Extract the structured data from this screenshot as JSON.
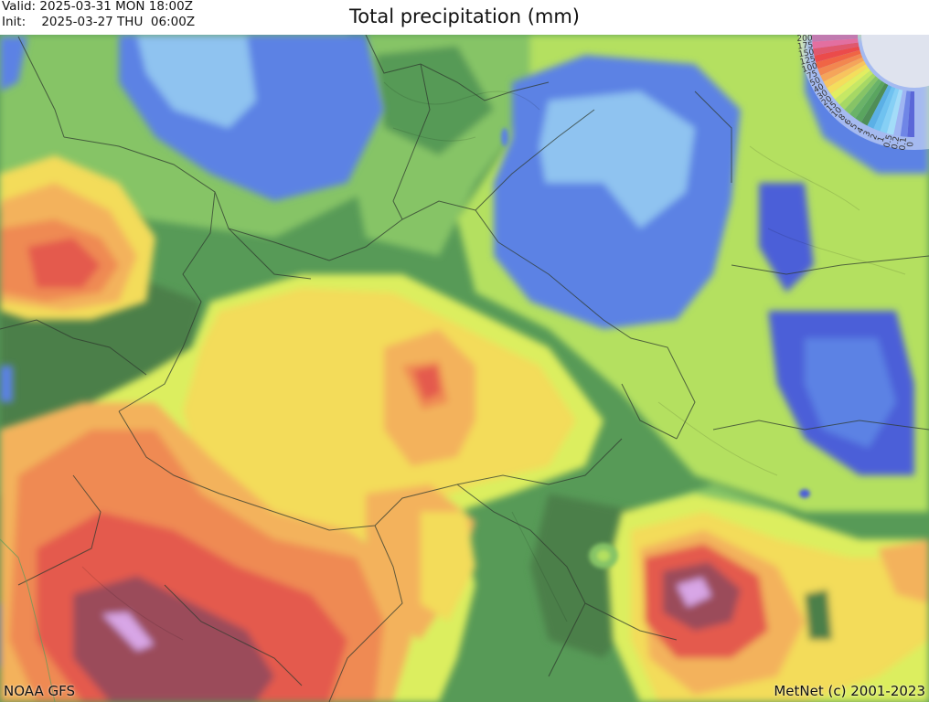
{
  "header": {
    "valid_label": "Valid:",
    "valid_value": "2025-03-31 MON 18:00Z",
    "init_label": "Init:",
    "init_value": "2025-03-27 THU  06:00Z",
    "title": "Total precipitation (mm)"
  },
  "footer": {
    "source": "NOAA GFS",
    "copyright": "MetNet (c) 2001-2023"
  },
  "legend": {
    "levels": [
      "200",
      "175",
      "150",
      "125",
      "100",
      "75",
      "50",
      "40",
      "30",
      "20",
      "15",
      "10",
      "8",
      "6",
      "5",
      "4",
      "3",
      "2",
      "1",
      "0.5",
      "0.2",
      "0.1",
      "0"
    ],
    "level_colors": [
      "#c17bb0",
      "#e36fa0",
      "#e0586e",
      "#eb4b4b",
      "#f06545",
      "#f28750",
      "#f5a55a",
      "#f8c45e",
      "#f4de5c",
      "#e2ee60",
      "#c6e864",
      "#a6d864",
      "#86c466",
      "#6ab368",
      "#5aa55f",
      "#4f8e57",
      "#5bb0e6",
      "#6fc2f0",
      "#86d0f5",
      "#a3dcf8",
      "#9fb5f2",
      "#6f86e6",
      "#5a67d8"
    ]
  },
  "map": {
    "variable": "Total precipitation",
    "units": "mm",
    "colors": {
      "extreme": "#d8a6e6",
      "very_high": "#9b4b5a",
      "high": "#e45a4e",
      "mid_high": "#ef8a52",
      "mid": "#f3b25b",
      "low_mid": "#f3dc5a",
      "low": "#dcee5f",
      "light_green": "#b4e061",
      "green": "#86c466",
      "dark_green": "#579a57",
      "forest": "#4c7f4a",
      "light_blue": "#8fc3f0",
      "blue": "#5b82e4",
      "deep_blue": "#4c5fd8"
    }
  }
}
